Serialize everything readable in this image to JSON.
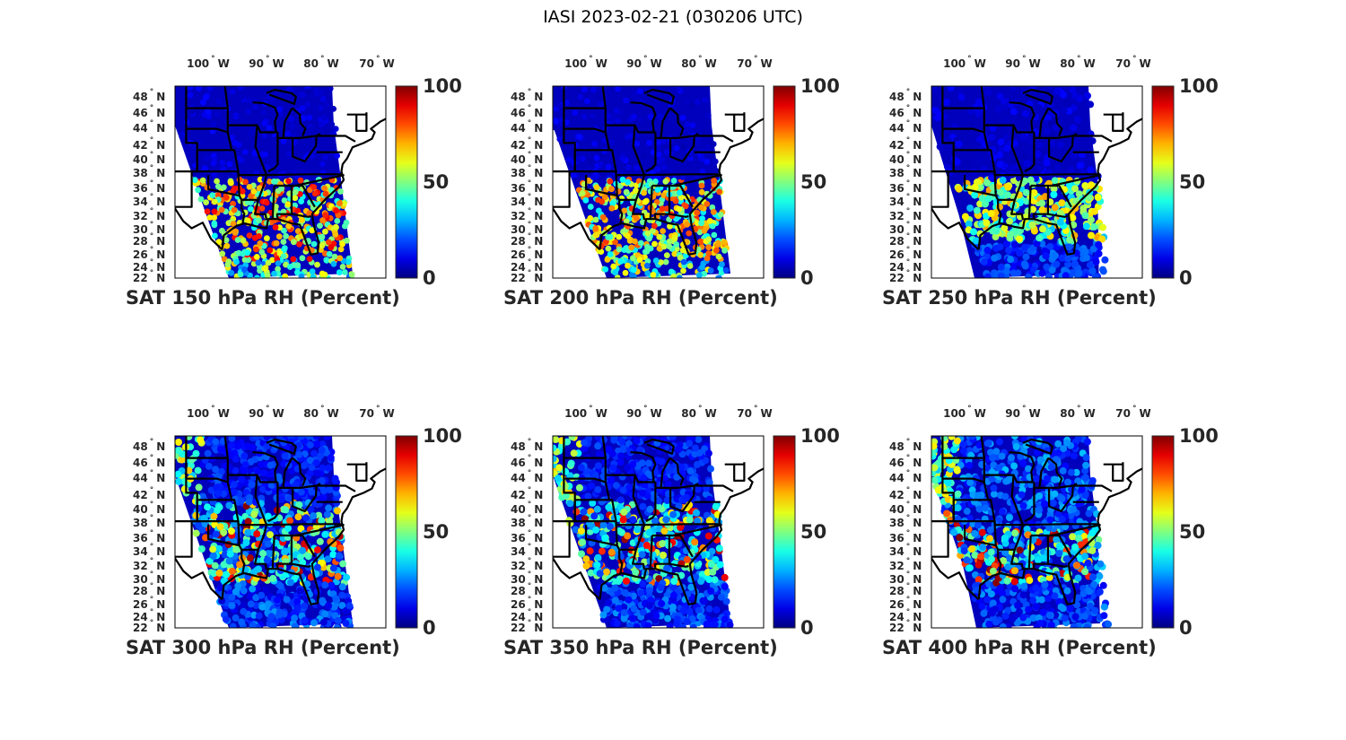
{
  "figure_title": "IASI 2023-02-21 (030206 UTC)",
  "chart_data": {
    "type": "map",
    "colormap": "jet",
    "colorbar": {
      "min": 0,
      "max": 100,
      "ticks": [
        "0",
        "50",
        "100"
      ]
    },
    "lon_ticks": [
      "100",
      "90",
      "80",
      "70"
    ],
    "lon_suffix": "W",
    "lat_ticks": [
      "48",
      "46",
      "44",
      "42",
      "40",
      "38",
      "36",
      "34",
      "32",
      "30",
      "28",
      "26",
      "24",
      "22"
    ],
    "lat_suffix": "N",
    "degree_symbol": "°",
    "panels": [
      {
        "title": "SAT 150 hPa RH (Percent)",
        "level_hPa": 150
      },
      {
        "title": "SAT 200 hPa RH (Percent)",
        "level_hPa": 200
      },
      {
        "title": "SAT 250 hPa RH (Percent)",
        "level_hPa": 250
      },
      {
        "title": "SAT 300 hPa RH (Percent)",
        "level_hPa": 300
      },
      {
        "title": "SAT 350 hPa RH (Percent)",
        "level_hPa": 350
      },
      {
        "title": "SAT 400 hPa RH (Percent)",
        "level_hPa": 400
      }
    ]
  }
}
